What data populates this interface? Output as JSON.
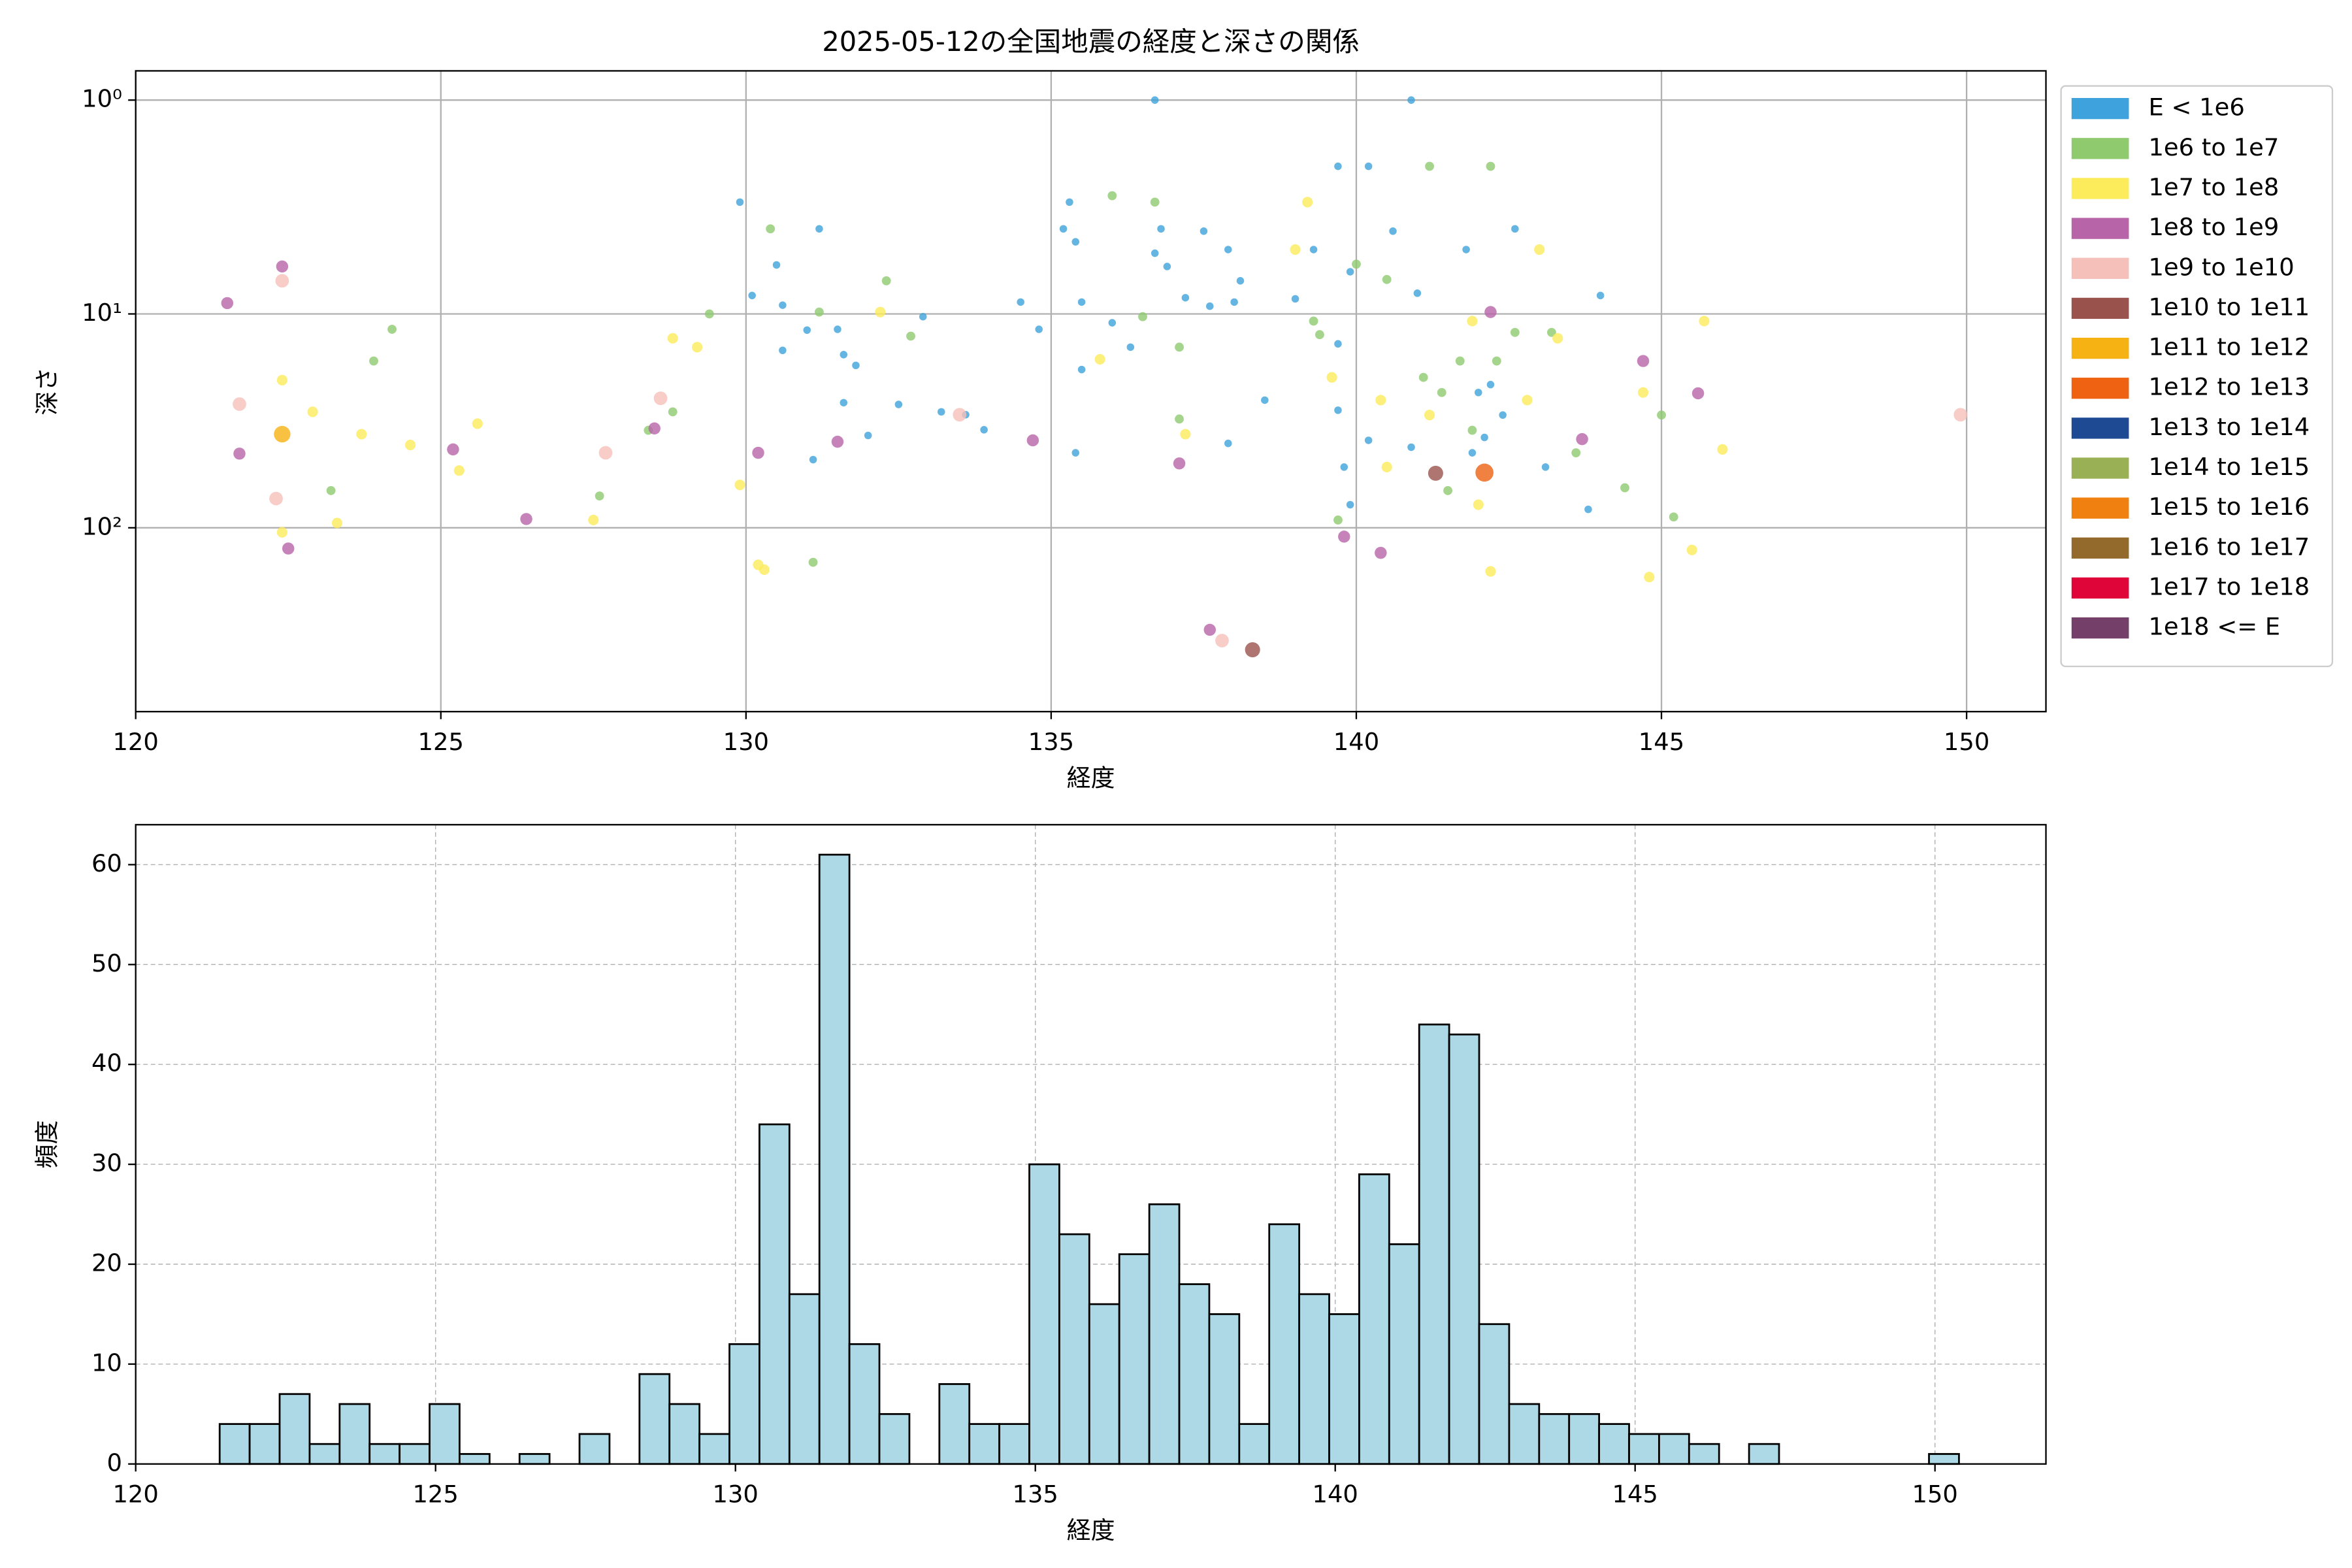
{
  "chart_data": [
    {
      "type": "scatter",
      "title": "2025-05-12の全国地震の経度と深さの関係",
      "xlabel": "経度",
      "ylabel": "深さ",
      "xlim": [
        120,
        151.3
      ],
      "xticks": [
        120,
        125,
        130,
        135,
        140,
        145,
        150
      ],
      "ylim": [
        724,
        0.73
      ],
      "ylog": true,
      "yticks": [
        {
          "value": 1,
          "label": "10⁰"
        },
        {
          "value": 10,
          "label": "10¹"
        },
        {
          "value": 100,
          "label": "10²"
        }
      ],
      "grid": true,
      "grid_linestyle": "solid",
      "legend": "outside upper right",
      "series": [
        {
          "name": "E < 1e6",
          "color": "#3ea3dc",
          "x": [
            129.9,
            131.2,
            130.1,
            130.5,
            130.6,
            130.6,
            131.0,
            131.1,
            131.5,
            131.6,
            131.6,
            131.8,
            132.0,
            132.5,
            135.3,
            135.2,
            135.4,
            135.5,
            135.5,
            135.4,
            136.0,
            136.3,
            136.7,
            136.8,
            136.9,
            137.2,
            137.5,
            137.6,
            137.9,
            138.0,
            138.1,
            136.7,
            137.9,
            138.5,
            139.0,
            139.3,
            139.7,
            139.7,
            139.7,
            139.8,
            140.2,
            139.9,
            139.9,
            140.2,
            140.6,
            140.9,
            141.0,
            140.9,
            141.8,
            141.9,
            142.0,
            142.1,
            142.2,
            142.4,
            142.6,
            143.1,
            143.8,
            144.0,
            133.2,
            133.6,
            133.9,
            134.8,
            134.5,
            132.9
          ],
          "values": [
            3.0,
            4.0,
            8.2,
            5.9,
            9.1,
            14.8,
            11.9,
            48,
            11.8,
            26,
            15.5,
            17.4,
            37,
            26.5,
            3.0,
            4.0,
            4.6,
            8.8,
            18.2,
            44.6,
            11.0,
            14.3,
            5.2,
            4.0,
            6.0,
            8.4,
            4.1,
            9.2,
            5.0,
            8.8,
            7.0,
            1.0,
            40.3,
            25.3,
            8.5,
            5.0,
            2.04,
            13.8,
            28.2,
            52,
            39,
            78,
            6.35,
            2.04,
            4.1,
            1.0,
            8.0,
            42,
            5.0,
            44.6,
            23.3,
            37.8,
            21.4,
            29.7,
            4.0,
            52,
            82,
            8.2,
            28.7,
            29.6,
            34.8,
            11.8,
            8.8,
            10.3
          ]
        },
        {
          "name": "1e6 to 1e7",
          "color": "#8fca6f",
          "x": [
            123.9,
            124.2,
            123.2,
            127.6,
            129.4,
            130.4,
            131.2,
            132.3,
            132.7,
            136.0,
            136.7,
            136.5,
            137.1,
            137.1,
            139.3,
            139.4,
            140.0,
            140.5,
            141.2,
            142.2,
            141.1,
            141.4,
            141.7,
            142.3,
            142.6,
            143.2,
            143.6,
            144.4,
            145.2,
            145.0,
            131.1,
            139.7,
            141.5,
            141.9,
            128.4,
            128.8
          ],
          "values": [
            16.6,
            11.8,
            67,
            71,
            10.0,
            4.0,
            9.8,
            7.0,
            12.7,
            2.8,
            3.0,
            10.3,
            14.3,
            31,
            10.8,
            12.5,
            5.85,
            6.9,
            2.04,
            2.04,
            19.8,
            23.3,
            16.6,
            16.6,
            12.2,
            12.2,
            44.6,
            65,
            89,
            29.7,
            145,
            92,
            67,
            35,
            35,
            28.7
          ]
        },
        {
          "name": "1e7 to 1e8",
          "color": "#fceb5b",
          "x": [
            122.4,
            122.9,
            122.4,
            123.3,
            123.7,
            124.5,
            125.3,
            125.6,
            127.5,
            128.8,
            129.2,
            129.9,
            130.2,
            130.3,
            132.2,
            135.8,
            137.2,
            139.0,
            139.2,
            139.6,
            140.4,
            140.5,
            141.2,
            142.0,
            142.2,
            141.9,
            142.8,
            143.0,
            144.7,
            144.8,
            145.5,
            145.7,
            146.0,
            143.3
          ],
          "values": [
            20.4,
            28.7,
            105,
            95,
            36.5,
            41,
            54,
            32.6,
            92,
            13.0,
            14.3,
            63,
            149,
            157,
            9.8,
            16.3,
            36.5,
            5.0,
            3.0,
            19.8,
            25.3,
            52,
            29.7,
            78,
            160,
            10.8,
            25.3,
            5.0,
            23.3,
            170,
            127,
            10.8,
            43,
            13.0
          ]
        },
        {
          "name": "1e8 to 1e9",
          "color": "#b864a8",
          "x": [
            121.5,
            122.4,
            121.7,
            122.5,
            125.2,
            126.4,
            128.5,
            130.2,
            131.5,
            134.7,
            137.1,
            137.6,
            139.8,
            140.4,
            143.7,
            144.7,
            145.6,
            142.2
          ],
          "values": [
            8.9,
            6.0,
            45,
            125,
            43,
            91,
            34.3,
            44.6,
            39.6,
            39,
            50,
            300,
            110,
            131,
            38.5,
            16.6,
            23.5,
            9.8
          ]
        },
        {
          "name": "1e9 to 1e10",
          "color": "#f6c0ba",
          "x": [
            122.4,
            121.7,
            122.3,
            127.7,
            128.6,
            133.5,
            137.8,
            149.9
          ],
          "values": [
            7.0,
            26.4,
            73,
            44.6,
            24.8,
            29.6,
            337,
            29.6
          ]
        },
        {
          "name": "1e10 to 1e11",
          "color": "#9a524d",
          "x": [
            138.3,
            141.3
          ],
          "values": [
            372,
            55.6
          ]
        },
        {
          "name": "1e11 to 1e12",
          "color": "#f6b112",
          "x": [
            122.4
          ],
          "values": [
            36.5
          ]
        },
        {
          "name": "1e12 to 1e13",
          "color": "#ee6211",
          "x": [
            142.1
          ],
          "values": [
            55.2
          ]
        },
        {
          "name": "1e13 to 1e14",
          "color": "#1e4a94",
          "x": [],
          "values": []
        },
        {
          "name": "1e14 to 1e15",
          "color": "#9ab054",
          "x": [],
          "values": []
        },
        {
          "name": "1e15 to 1e16",
          "color": "#f0800f",
          "x": [],
          "values": []
        },
        {
          "name": "1e16 to 1e17",
          "color": "#946a2c",
          "x": [],
          "values": []
        },
        {
          "name": "1e17 to 1e18",
          "color": "#df0539",
          "x": [],
          "values": []
        },
        {
          "name": "1e18 <= E",
          "color": "#74406a",
          "x": [],
          "values": []
        }
      ]
    },
    {
      "type": "histogram",
      "xlabel": "経度",
      "ylabel": "頻度",
      "xlim": [
        120,
        151.85
      ],
      "xticks": [
        120,
        125,
        130,
        135,
        140,
        145,
        150
      ],
      "ylim": [
        0,
        64
      ],
      "yticks": [
        0,
        10,
        20,
        30,
        40,
        50,
        60
      ],
      "grid": true,
      "grid_linestyle": "dashed",
      "color": "#add8e6",
      "edgecolor": "#000000",
      "bins": [
        121.4,
        121.9,
        122.4,
        122.9,
        123.4,
        123.9,
        124.4,
        124.9,
        125.4,
        125.9,
        126.4,
        126.9,
        127.4,
        127.9,
        128.4,
        128.9,
        129.4,
        129.9,
        130.4,
        130.9,
        131.4,
        131.9,
        132.4,
        132.9,
        133.4,
        133.9,
        134.4,
        134.9,
        135.4,
        135.9,
        136.4,
        136.9,
        137.4,
        137.9,
        138.4,
        138.9,
        139.4,
        139.9,
        140.4,
        140.9,
        141.4,
        141.9,
        142.4,
        142.9,
        143.4,
        143.9,
        144.4,
        144.9,
        145.4,
        145.9,
        146.4,
        146.9,
        147.4,
        147.9,
        148.4,
        148.9,
        149.4,
        149.9,
        150.4
      ],
      "values": [
        4,
        4,
        7,
        2,
        6,
        2,
        2,
        6,
        1,
        0,
        1,
        0,
        3,
        0,
        9,
        6,
        3,
        12,
        34,
        17,
        61,
        12,
        5,
        0,
        8,
        4,
        4,
        30,
        23,
        16,
        21,
        26,
        18,
        15,
        4,
        24,
        17,
        15,
        29,
        22,
        44,
        43,
        14,
        6,
        5,
        5,
        4,
        3,
        3,
        2,
        0,
        2,
        0,
        0,
        0,
        0,
        0,
        1
      ]
    }
  ]
}
